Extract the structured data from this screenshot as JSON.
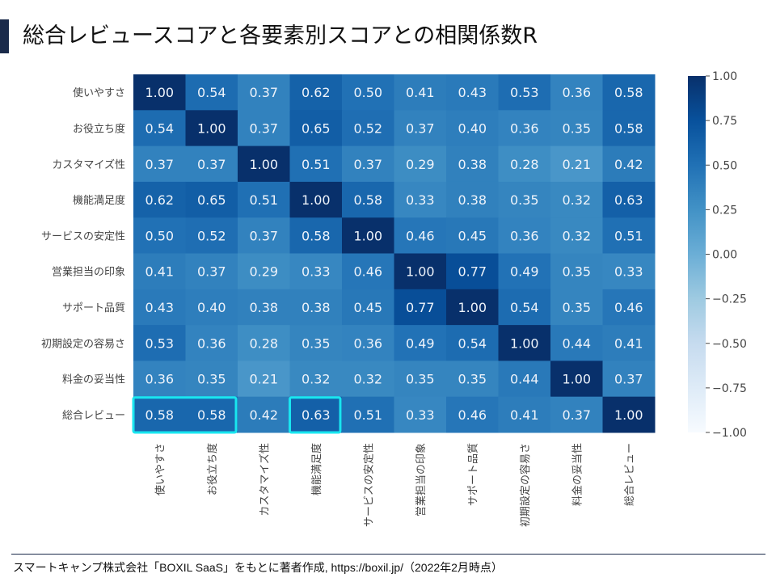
{
  "title": "総合レビュースコアと各要素別スコアとの相関係数R",
  "footer": "スマートキャンプ株式会社「BOXIL SaaS」をもとに著者作成, https://boxil.jp/（2022年2月時点）",
  "colors": {
    "title_accent": "#1a2a4a",
    "highlight": "#19e6f0",
    "colormap": "Blues"
  },
  "chart_data": {
    "type": "heatmap",
    "title": "",
    "labels": [
      "使いやすさ",
      "お役立ち度",
      "カスタマイズ性",
      "機能満足度",
      "サービスの安定性",
      "営業担当の印象",
      "サポート品質",
      "初期設定の容易さ",
      "料金の妥当性",
      "総合レビュー"
    ],
    "values": [
      [
        1.0,
        0.54,
        0.37,
        0.62,
        0.5,
        0.41,
        0.43,
        0.53,
        0.36,
        0.58
      ],
      [
        0.54,
        1.0,
        0.37,
        0.65,
        0.52,
        0.37,
        0.4,
        0.36,
        0.35,
        0.58
      ],
      [
        0.37,
        0.37,
        1.0,
        0.51,
        0.37,
        0.29,
        0.38,
        0.28,
        0.21,
        0.42
      ],
      [
        0.62,
        0.65,
        0.51,
        1.0,
        0.58,
        0.33,
        0.38,
        0.35,
        0.32,
        0.63
      ],
      [
        0.5,
        0.52,
        0.37,
        0.58,
        1.0,
        0.46,
        0.45,
        0.36,
        0.32,
        0.51
      ],
      [
        0.41,
        0.37,
        0.29,
        0.33,
        0.46,
        1.0,
        0.77,
        0.49,
        0.35,
        0.33
      ],
      [
        0.43,
        0.4,
        0.38,
        0.38,
        0.45,
        0.77,
        1.0,
        0.54,
        0.35,
        0.46
      ],
      [
        0.53,
        0.36,
        0.28,
        0.35,
        0.36,
        0.49,
        0.54,
        1.0,
        0.44,
        0.41
      ],
      [
        0.36,
        0.35,
        0.21,
        0.32,
        0.32,
        0.35,
        0.35,
        0.44,
        1.0,
        0.37
      ],
      [
        0.58,
        0.58,
        0.42,
        0.63,
        0.51,
        0.33,
        0.46,
        0.41,
        0.37,
        1.0
      ]
    ],
    "vmin": -1.0,
    "vmax": 1.0,
    "colorbar_ticks": [
      "1.00",
      "0.75",
      "0.50",
      "0.25",
      "0.00",
      "−0.25",
      "−0.50",
      "−0.75",
      "−1.00"
    ],
    "highlighted_cells": [
      {
        "row": "総合レビュー",
        "cols": [
          "使いやすさ",
          "お役立ち度"
        ]
      },
      {
        "row": "総合レビュー",
        "cols": [
          "機能満足度"
        ]
      }
    ]
  }
}
